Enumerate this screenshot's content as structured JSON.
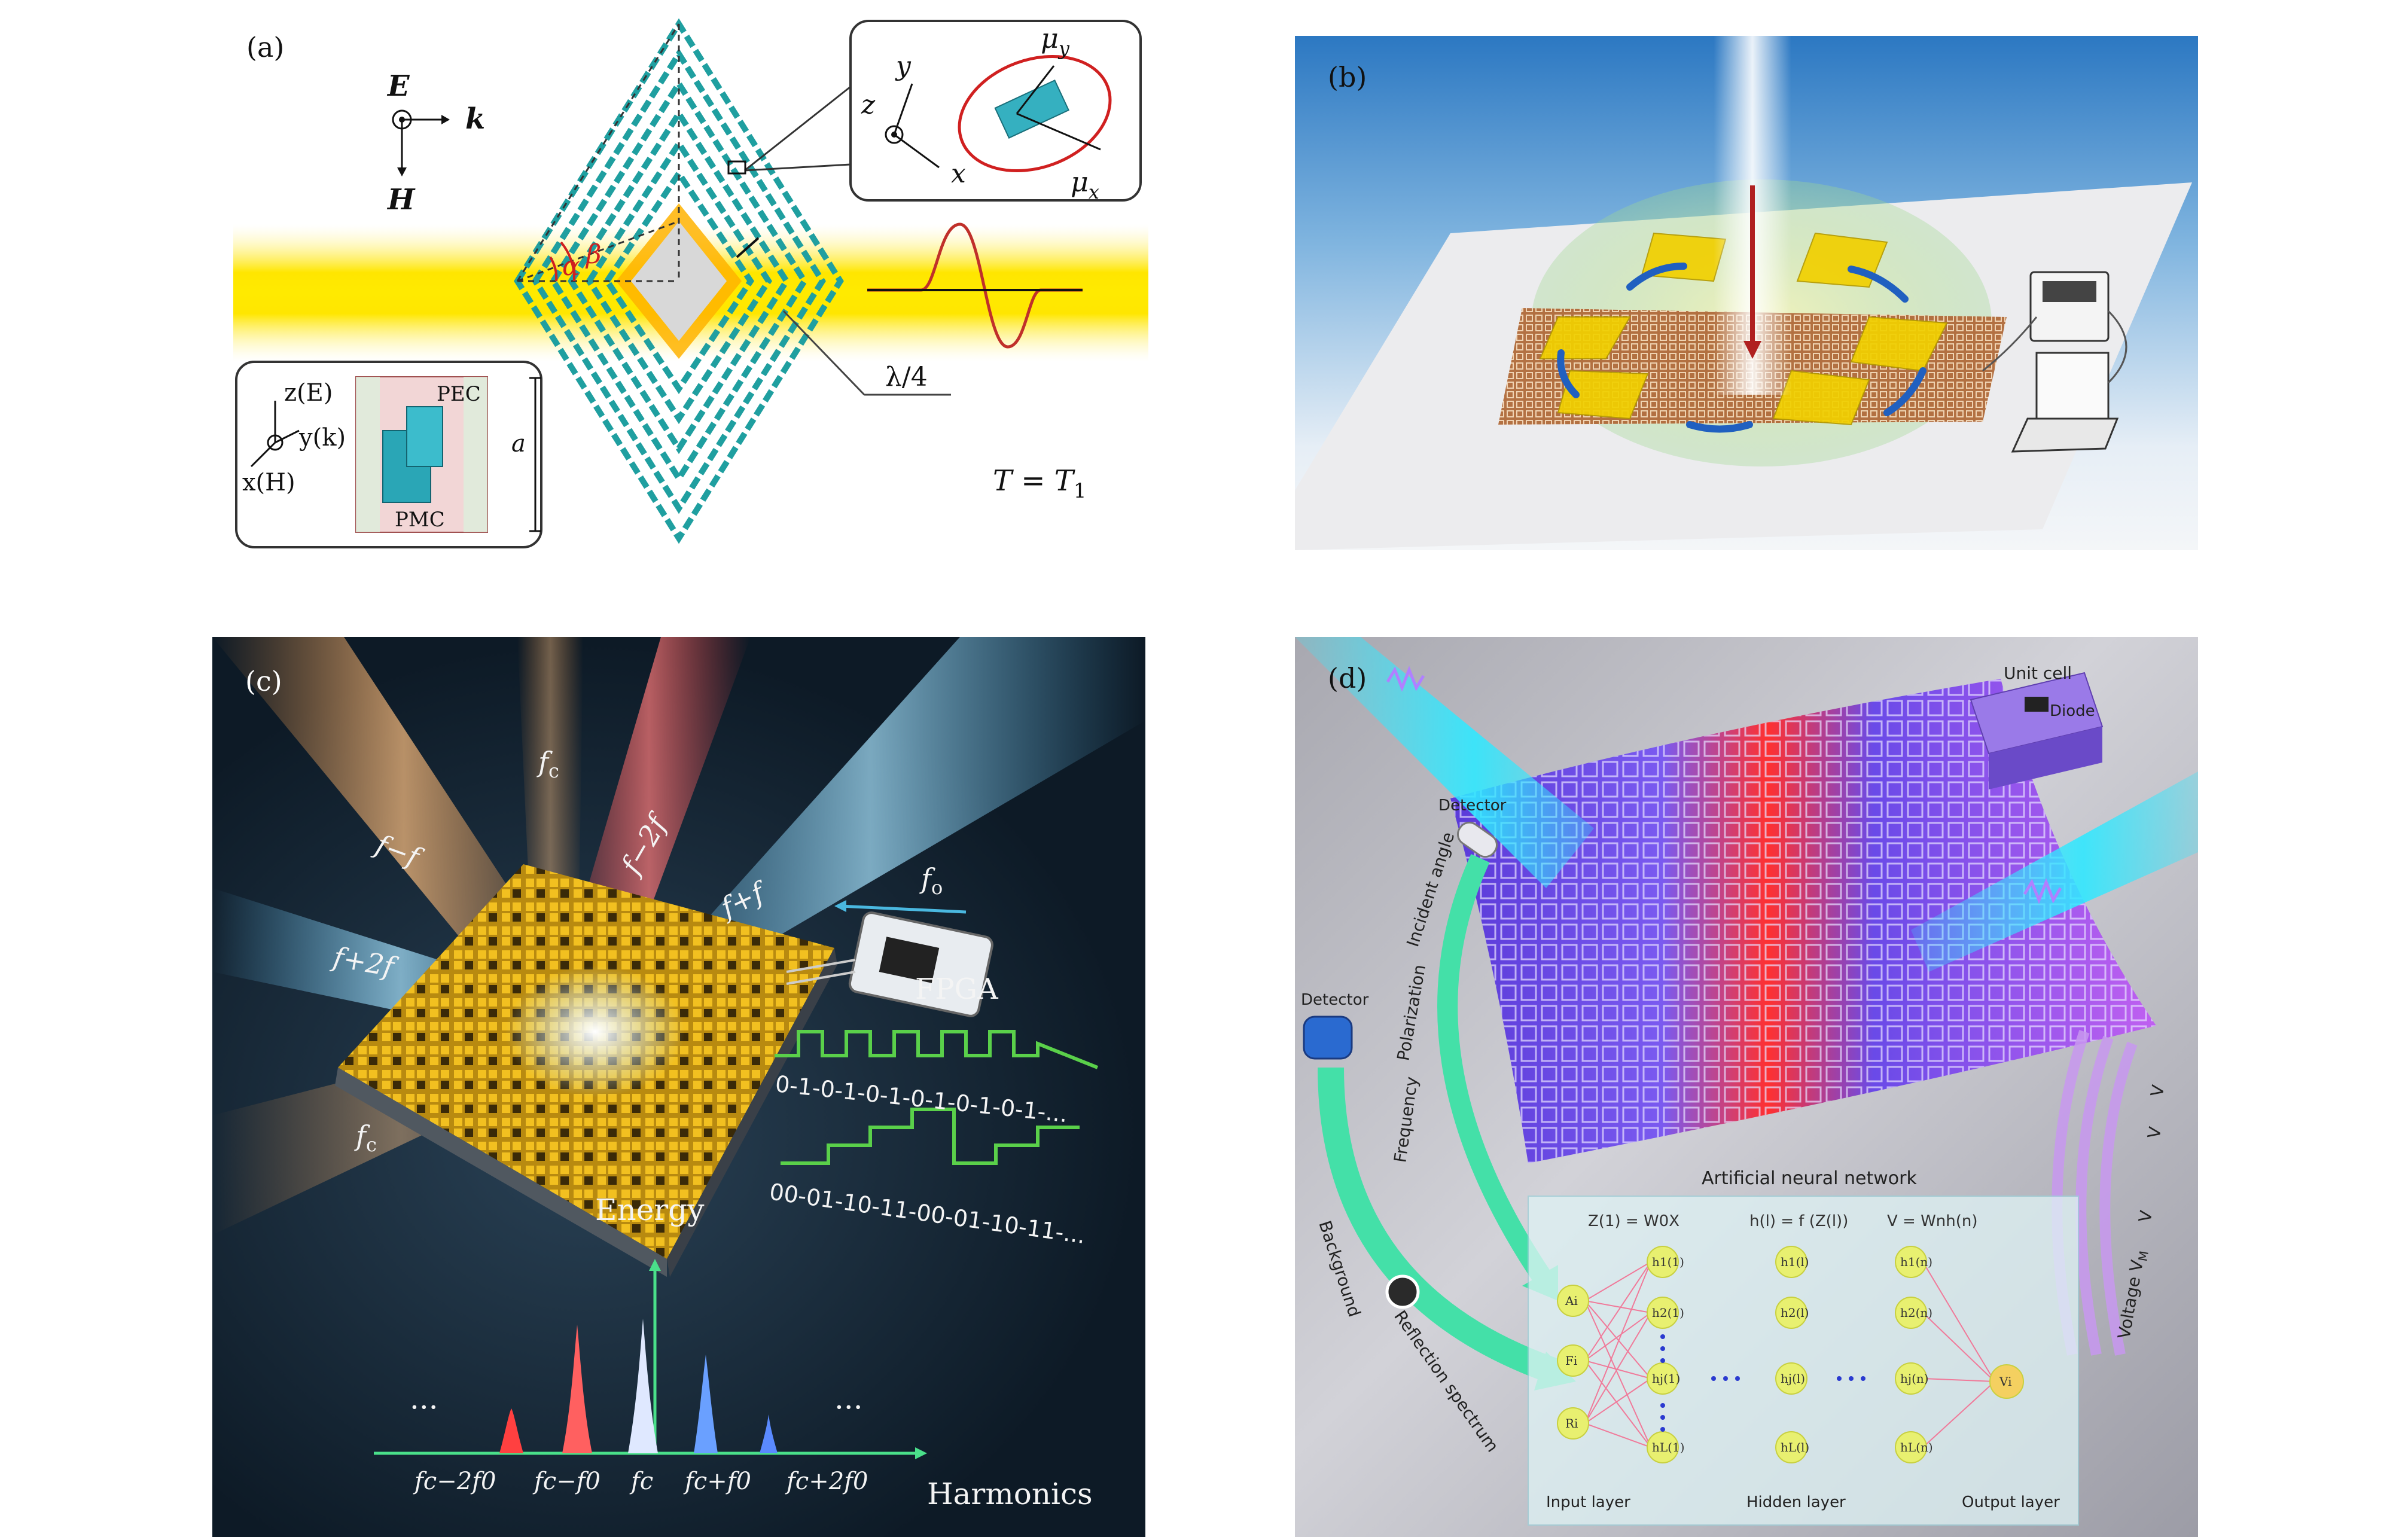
{
  "panel_a": {
    "label": "(a)",
    "E": "E",
    "k": "k",
    "H": "H",
    "y": "y",
    "z": "z",
    "x": "x",
    "mu_y": "μ",
    "mu_y_sub": "y",
    "mu_x": "μ",
    "mu_x_sub": "x",
    "alpha": "α",
    "beta": "β",
    "lambda": "λ/4",
    "T": "T",
    "T_eq": " = ",
    "T1": "T",
    "T1_sub": "1",
    "zE": "z(E)",
    "yk": "y(k)",
    "xH": "x(H)",
    "PEC": "PEC",
    "PMC": "PMC",
    "a": "a"
  },
  "panel_b": {
    "label": "(b)"
  },
  "panel_c": {
    "label": "(c)",
    "fc_top": "f",
    "c": "c",
    "fc_minus_f0": "f−f",
    "fc_minus_2f0": "f−2f",
    "fc_plus_f0": "f+f",
    "fc_plus_2f0": "f+2f",
    "fc_bottom": "f",
    "fo": "f",
    "o_sub": "o",
    "fpga": "FPGA",
    "code1": "0-1-0-1-0-1-0-1-0-1-0-1-...",
    "code2": "00-01-10-11-00-01-10-11-...",
    "energy": "Energy",
    "harmonics": "Harmonics",
    "dots": "···",
    "axis_labels": [
      "fc−2f0",
      "fc−f0",
      "fc",
      "fc+f0",
      "fc+2f0"
    ]
  },
  "panel_d": {
    "label": "(d)",
    "unit_cell": "Unit cell",
    "diode": "Diode",
    "detector_top": "Detector",
    "detector_left": "Detector",
    "incident_angle": "Incident angle",
    "polarization": "Polarization",
    "frequency": "Frequency",
    "background": "Background",
    "reflection_spectrum": "Reflection spectrum",
    "voltage": "Voltage V",
    "vm": "M",
    "v1": "V",
    "v2": "V",
    "vi": "V",
    "ann_title": "Artificial neural network",
    "eq1": "Z(1) = W0X",
    "eq2": "h(l) = f (Z(l))",
    "eq3": "V = Wnh(n)",
    "input_nodes": [
      "Ai",
      "Fi",
      "Ri"
    ],
    "h1_nodes": [
      "h1(1)",
      "h2(1)",
      "hj(1)",
      "hL(1)"
    ],
    "hl_nodes": [
      "h1(l)",
      "h2(l)",
      "hj(l)",
      "hL(l)"
    ],
    "hn_nodes": [
      "h1(n)",
      "h2(n)",
      "hj(n)",
      "hL(n)"
    ],
    "output_node": "Vi",
    "input_layer": "Input layer",
    "hidden_layer": "Hidden layer",
    "output_layer": "Output layer"
  }
}
